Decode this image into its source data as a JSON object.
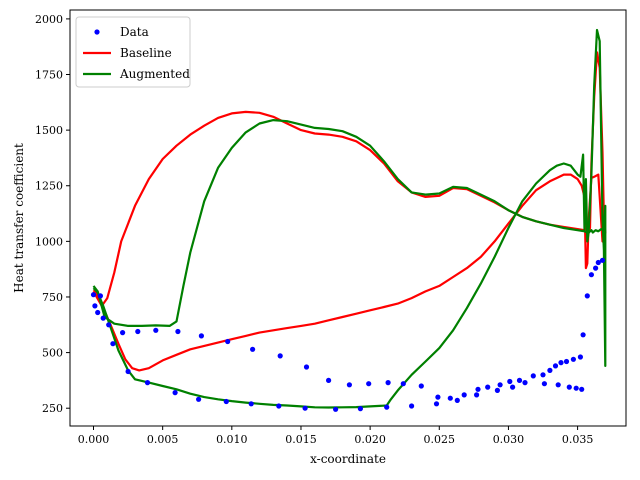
{
  "chart_data": {
    "type": "line",
    "xlabel": "x-coordinate",
    "ylabel": "Heat transfer coefficient",
    "xlim": [
      -0.0017,
      0.0385
    ],
    "ylim": [
      170,
      2040
    ],
    "xticks": [
      0.0,
      0.005,
      0.01,
      0.015,
      0.02,
      0.025,
      0.03,
      0.035
    ],
    "xtick_labels": [
      "0.000",
      "0.005",
      "0.010",
      "0.015",
      "0.020",
      "0.025",
      "0.030",
      "0.035"
    ],
    "yticks": [
      250,
      500,
      750,
      1000,
      1250,
      1500,
      1750,
      2000
    ],
    "ytick_labels": [
      "250",
      "500",
      "750",
      "1000",
      "1250",
      "1500",
      "1750",
      "2000"
    ],
    "legend": {
      "position": "top-left",
      "entries": [
        "Data",
        "Baseline",
        "Augmented"
      ]
    },
    "series": [
      {
        "name": "Data",
        "kind": "scatter",
        "color": "#0000ff",
        "points": [
          [
            0.0,
            760
          ],
          [
            0.0001,
            710
          ],
          [
            0.0003,
            680
          ],
          [
            0.0005,
            755
          ],
          [
            0.0007,
            655
          ],
          [
            0.0011,
            625
          ],
          [
            0.0014,
            540
          ],
          [
            0.0021,
            590
          ],
          [
            0.0025,
            415
          ],
          [
            0.0032,
            595
          ],
          [
            0.0039,
            365
          ],
          [
            0.0045,
            600
          ],
          [
            0.0059,
            320
          ],
          [
            0.0061,
            595
          ],
          [
            0.0076,
            290
          ],
          [
            0.0078,
            575
          ],
          [
            0.0096,
            280
          ],
          [
            0.0097,
            550
          ],
          [
            0.0114,
            270
          ],
          [
            0.0115,
            515
          ],
          [
            0.0134,
            260
          ],
          [
            0.0135,
            485
          ],
          [
            0.0153,
            250
          ],
          [
            0.0154,
            435
          ],
          [
            0.017,
            375
          ],
          [
            0.0175,
            245
          ],
          [
            0.0185,
            355
          ],
          [
            0.0193,
            248
          ],
          [
            0.0199,
            360
          ],
          [
            0.0212,
            255
          ],
          [
            0.0213,
            365
          ],
          [
            0.0224,
            360
          ],
          [
            0.023,
            260
          ],
          [
            0.0237,
            350
          ],
          [
            0.0248,
            270
          ],
          [
            0.0249,
            300
          ],
          [
            0.0258,
            295
          ],
          [
            0.0263,
            285
          ],
          [
            0.0268,
            310
          ],
          [
            0.0277,
            310
          ],
          [
            0.0278,
            335
          ],
          [
            0.0285,
            345
          ],
          [
            0.0292,
            330
          ],
          [
            0.0294,
            355
          ],
          [
            0.0301,
            370
          ],
          [
            0.0303,
            345
          ],
          [
            0.0308,
            375
          ],
          [
            0.0312,
            365
          ],
          [
            0.0318,
            395
          ],
          [
            0.0325,
            400
          ],
          [
            0.0326,
            360
          ],
          [
            0.033,
            420
          ],
          [
            0.0334,
            440
          ],
          [
            0.0336,
            355
          ],
          [
            0.0338,
            455
          ],
          [
            0.0342,
            460
          ],
          [
            0.0344,
            345
          ],
          [
            0.0347,
            470
          ],
          [
            0.0349,
            340
          ],
          [
            0.0352,
            480
          ],
          [
            0.0353,
            335
          ],
          [
            0.0354,
            580
          ],
          [
            0.0357,
            755
          ],
          [
            0.036,
            850
          ],
          [
            0.0363,
            880
          ],
          [
            0.0365,
            905
          ],
          [
            0.0368,
            915
          ]
        ]
      },
      {
        "name": "Baseline",
        "kind": "line",
        "color": "#ff0000",
        "points": [
          [
            0.0,
            775
          ],
          [
            0.0006,
            710
          ],
          [
            0.001,
            745
          ],
          [
            0.0015,
            860
          ],
          [
            0.002,
            1000
          ],
          [
            0.003,
            1160
          ],
          [
            0.004,
            1280
          ],
          [
            0.005,
            1370
          ],
          [
            0.006,
            1430
          ],
          [
            0.007,
            1480
          ],
          [
            0.008,
            1520
          ],
          [
            0.009,
            1555
          ],
          [
            0.01,
            1575
          ],
          [
            0.011,
            1582
          ],
          [
            0.012,
            1578
          ],
          [
            0.013,
            1560
          ],
          [
            0.014,
            1530
          ],
          [
            0.015,
            1500
          ],
          [
            0.016,
            1485
          ],
          [
            0.017,
            1480
          ],
          [
            0.018,
            1470
          ],
          [
            0.019,
            1450
          ],
          [
            0.02,
            1410
          ],
          [
            0.021,
            1350
          ],
          [
            0.022,
            1270
          ],
          [
            0.023,
            1220
          ],
          [
            0.024,
            1200
          ],
          [
            0.025,
            1205
          ],
          [
            0.026,
            1240
          ],
          [
            0.027,
            1235
          ],
          [
            0.028,
            1205
          ],
          [
            0.029,
            1175
          ],
          [
            0.03,
            1140
          ],
          [
            0.031,
            1110
          ],
          [
            0.032,
            1090
          ],
          [
            0.033,
            1075
          ],
          [
            0.034,
            1065
          ],
          [
            0.035,
            1055
          ],
          [
            0.0355,
            1050
          ],
          [
            0.0357,
            1050
          ],
          [
            0.0358,
            1040
          ],
          [
            0.0359,
            1060
          ],
          [
            0.036,
            1350
          ],
          [
            0.0362,
            1650
          ],
          [
            0.0364,
            1850
          ],
          [
            0.0366,
            1780
          ],
          [
            0.0368,
            1400
          ],
          [
            0.0369,
            1100
          ],
          [
            0.037,
            1040
          ],
          [
            0.0368,
            1000
          ],
          [
            0.0365,
            1300
          ],
          [
            0.0362,
            1290
          ],
          [
            0.036,
            1285
          ],
          [
            0.0358,
            1100
          ],
          [
            0.0357,
            900
          ],
          [
            0.0356,
            880
          ],
          [
            0.0355,
            1200
          ],
          [
            0.0353,
            1250
          ],
          [
            0.035,
            1280
          ],
          [
            0.0345,
            1300
          ],
          [
            0.034,
            1300
          ],
          [
            0.0335,
            1285
          ],
          [
            0.033,
            1270
          ],
          [
            0.032,
            1230
          ],
          [
            0.031,
            1160
          ],
          [
            0.03,
            1080
          ],
          [
            0.029,
            1000
          ],
          [
            0.028,
            930
          ],
          [
            0.027,
            880
          ],
          [
            0.026,
            840
          ],
          [
            0.025,
            800
          ],
          [
            0.024,
            775
          ],
          [
            0.023,
            745
          ],
          [
            0.022,
            720
          ],
          [
            0.021,
            705
          ],
          [
            0.02,
            690
          ],
          [
            0.019,
            675
          ],
          [
            0.018,
            660
          ],
          [
            0.017,
            645
          ],
          [
            0.016,
            630
          ],
          [
            0.015,
            620
          ],
          [
            0.014,
            610
          ],
          [
            0.013,
            600
          ],
          [
            0.012,
            590
          ],
          [
            0.011,
            575
          ],
          [
            0.01,
            560
          ],
          [
            0.009,
            545
          ],
          [
            0.008,
            530
          ],
          [
            0.007,
            515
          ],
          [
            0.006,
            490
          ],
          [
            0.005,
            465
          ],
          [
            0.004,
            430
          ],
          [
            0.0033,
            420
          ],
          [
            0.0028,
            430
          ],
          [
            0.0023,
            470
          ],
          [
            0.0018,
            540
          ],
          [
            0.0012,
            630
          ],
          [
            0.0007,
            700
          ],
          [
            0.0003,
            760
          ],
          [
            0.0,
            780
          ]
        ]
      },
      {
        "name": "Augmented",
        "kind": "line",
        "color": "#008000",
        "points": [
          [
            0.0,
            800
          ],
          [
            0.0003,
            775
          ],
          [
            0.0008,
            660
          ],
          [
            0.0015,
            630
          ],
          [
            0.0025,
            620
          ],
          [
            0.0035,
            620
          ],
          [
            0.0045,
            622
          ],
          [
            0.0055,
            620
          ],
          [
            0.006,
            640
          ],
          [
            0.0065,
            800
          ],
          [
            0.007,
            950
          ],
          [
            0.008,
            1180
          ],
          [
            0.009,
            1330
          ],
          [
            0.01,
            1420
          ],
          [
            0.011,
            1490
          ],
          [
            0.012,
            1530
          ],
          [
            0.013,
            1545
          ],
          [
            0.014,
            1540
          ],
          [
            0.015,
            1525
          ],
          [
            0.016,
            1510
          ],
          [
            0.017,
            1505
          ],
          [
            0.018,
            1495
          ],
          [
            0.019,
            1470
          ],
          [
            0.02,
            1430
          ],
          [
            0.021,
            1360
          ],
          [
            0.022,
            1280
          ],
          [
            0.023,
            1220
          ],
          [
            0.024,
            1210
          ],
          [
            0.025,
            1215
          ],
          [
            0.026,
            1245
          ],
          [
            0.027,
            1240
          ],
          [
            0.028,
            1210
          ],
          [
            0.029,
            1180
          ],
          [
            0.03,
            1140
          ],
          [
            0.031,
            1110
          ],
          [
            0.032,
            1090
          ],
          [
            0.033,
            1075
          ],
          [
            0.034,
            1060
          ],
          [
            0.035,
            1050
          ],
          [
            0.0355,
            1045
          ],
          [
            0.0357,
            1040
          ],
          [
            0.0358,
            1050
          ],
          [
            0.036,
            1300
          ],
          [
            0.0362,
            1700
          ],
          [
            0.0364,
            1950
          ],
          [
            0.0366,
            1900
          ],
          [
            0.0367,
            1500
          ],
          [
            0.0368,
            1100
          ],
          [
            0.0369,
            960
          ],
          [
            0.037,
            440
          ],
          [
            0.037,
            1160
          ],
          [
            0.0369,
            1050
          ],
          [
            0.0367,
            1055
          ],
          [
            0.0365,
            1045
          ],
          [
            0.0363,
            1050
          ],
          [
            0.0361,
            1040
          ],
          [
            0.036,
            1050
          ],
          [
            0.0358,
            1040
          ],
          [
            0.0357,
            1000
          ],
          [
            0.0356,
            1280
          ],
          [
            0.0355,
            1050
          ],
          [
            0.0354,
            1390
          ],
          [
            0.0352,
            1290
          ],
          [
            0.035,
            1300
          ],
          [
            0.0345,
            1340
          ],
          [
            0.034,
            1350
          ],
          [
            0.0335,
            1340
          ],
          [
            0.033,
            1320
          ],
          [
            0.032,
            1260
          ],
          [
            0.031,
            1180
          ],
          [
            0.03,
            1060
          ],
          [
            0.029,
            930
          ],
          [
            0.028,
            810
          ],
          [
            0.027,
            700
          ],
          [
            0.026,
            600
          ],
          [
            0.025,
            520
          ],
          [
            0.024,
            460
          ],
          [
            0.023,
            400
          ],
          [
            0.022,
            330
          ],
          [
            0.0215,
            290
          ],
          [
            0.0212,
            262
          ],
          [
            0.02,
            258
          ],
          [
            0.019,
            255
          ],
          [
            0.018,
            254
          ],
          [
            0.017,
            253
          ],
          [
            0.016,
            254
          ],
          [
            0.015,
            258
          ],
          [
            0.014,
            262
          ],
          [
            0.013,
            265
          ],
          [
            0.012,
            270
          ],
          [
            0.011,
            275
          ],
          [
            0.01,
            282
          ],
          [
            0.009,
            290
          ],
          [
            0.008,
            300
          ],
          [
            0.007,
            315
          ],
          [
            0.006,
            335
          ],
          [
            0.005,
            350
          ],
          [
            0.004,
            365
          ],
          [
            0.003,
            380
          ],
          [
            0.0025,
            420
          ],
          [
            0.0018,
            510
          ],
          [
            0.0012,
            620
          ],
          [
            0.0007,
            710
          ],
          [
            0.0003,
            770
          ],
          [
            0.0,
            790
          ]
        ]
      }
    ]
  }
}
